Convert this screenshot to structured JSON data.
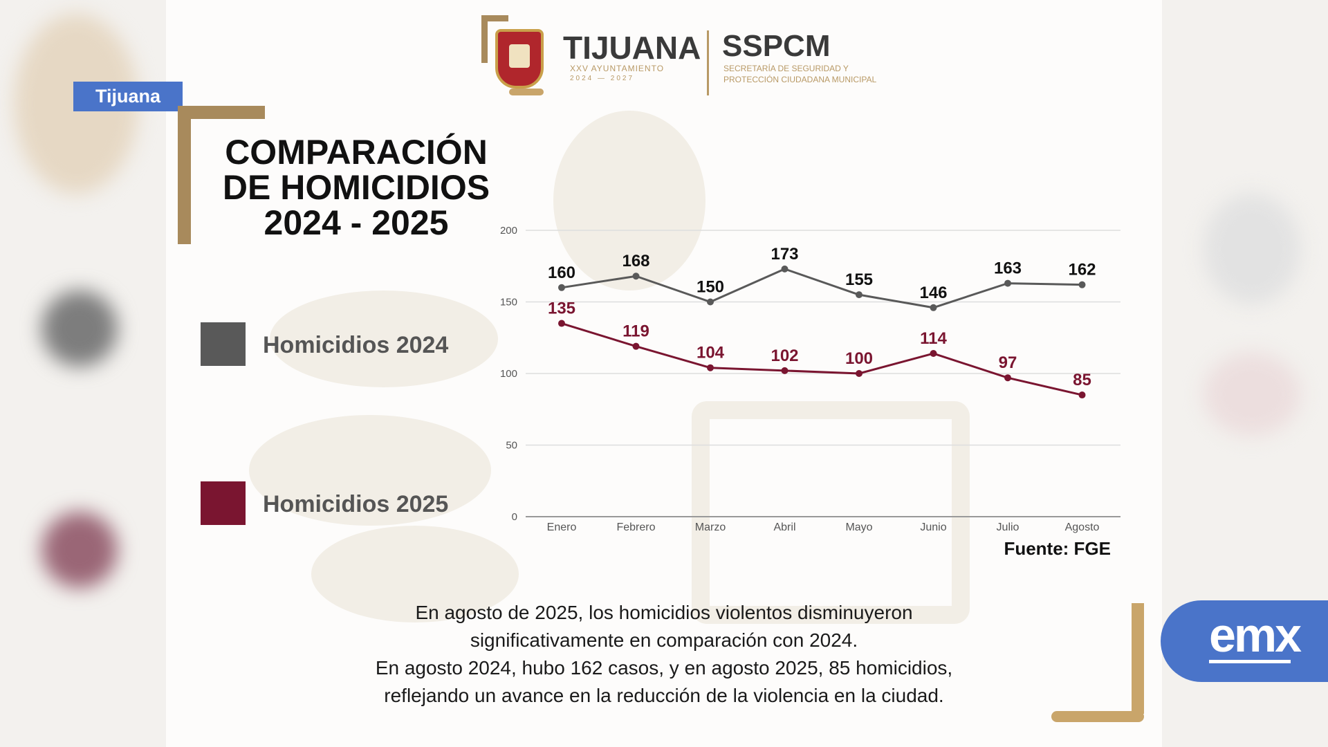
{
  "region_tag": "Tijuana",
  "header": {
    "city": "TIJUANA",
    "city_sub": "XXV AYUNTAMIENTO",
    "city_years": "2024 — 2027",
    "agency": "SSPCM",
    "agency_line1": "SECRETARÍA DE SEGURIDAD Y",
    "agency_line2": "PROTECCIÓN CIUDADANA MUNICIPAL"
  },
  "title": {
    "line1": "COMPARACIÓN",
    "line2": "DE HOMICIDIOS",
    "line3": "2024 - 2025"
  },
  "colors": {
    "series_2024": "#595959",
    "series_2025": "#7a1530",
    "accent_gold": "#a88a5c",
    "brand_blue": "#4a74c9"
  },
  "chart_data": {
    "type": "line",
    "title": "COMPARACIÓN DE HOMICIDIOS 2024 - 2025",
    "categories": [
      "Enero",
      "Febrero",
      "Marzo",
      "Abril",
      "Mayo",
      "Junio",
      "Julio",
      "Agosto"
    ],
    "y_ticks": [
      "0",
      "50",
      "100",
      "150",
      "200"
    ],
    "ylim": [
      0,
      200
    ],
    "grid": true,
    "legend_position": "left",
    "series": [
      {
        "name": "Homicidios 2024",
        "color": "#595959",
        "values": [
          160,
          168,
          150,
          173,
          155,
          146,
          163,
          162
        ]
      },
      {
        "name": "Homicidios 2025",
        "color": "#7a1530",
        "values": [
          135,
          119,
          104,
          102,
          100,
          114,
          97,
          85
        ]
      }
    ],
    "source": "Fuente: FGE"
  },
  "summary": {
    "line1": "En agosto de 2025, los homicidios violentos disminuyeron",
    "line2": "significativamente en comparación con 2024.",
    "line3": "En agosto 2024, hubo 162 casos, y en agosto 2025, 85 homicidios,",
    "line4": "reflejando un avance en la reducción de la violencia en la ciudad."
  },
  "badge": "emx"
}
